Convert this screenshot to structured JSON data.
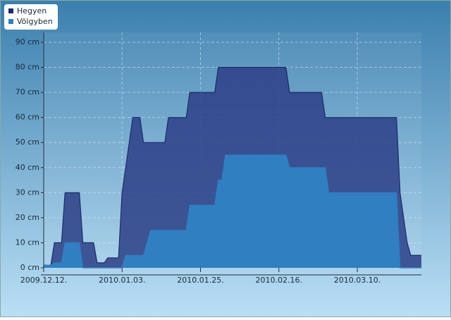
{
  "chart_data": {
    "type": "area",
    "x": [
      "2009-12-12",
      "2009-12-14",
      "2009-12-15",
      "2009-12-17",
      "2009-12-18",
      "2009-12-22",
      "2009-12-23",
      "2009-12-26",
      "2009-12-27",
      "2009-12-29",
      "2009-12-30",
      "2010-01-02",
      "2010-01-03",
      "2010-01-04",
      "2010-01-05",
      "2010-01-06",
      "2010-01-08",
      "2010-01-09",
      "2010-01-11",
      "2010-01-15",
      "2010-01-16",
      "2010-01-21",
      "2010-01-22",
      "2010-01-29",
      "2010-01-30",
      "2010-01-31",
      "2010-02-01",
      "2010-02-18",
      "2010-02-19",
      "2010-02-28",
      "2010-03-01",
      "2010-03-02",
      "2010-03-21",
      "2010-03-22",
      "2010-03-24",
      "2010-03-25",
      "2010-03-28"
    ],
    "series": [
      {
        "name": "Hegyen",
        "color": "#2b3f86",
        "values": [
          1,
          1,
          10,
          10,
          30,
          30,
          10,
          10,
          2,
          2,
          4,
          4,
          30,
          40,
          50,
          60,
          60,
          50,
          50,
          50,
          60,
          60,
          70,
          70,
          80,
          80,
          80,
          80,
          70,
          70,
          60,
          60,
          60,
          30,
          10,
          5,
          5
        ]
      },
      {
        "name": "Völgyben",
        "color": "#2f7fc1",
        "values": [
          1,
          1,
          2,
          2,
          10,
          10,
          0,
          0,
          0,
          0,
          0,
          0,
          0,
          5,
          5,
          5,
          5,
          5,
          15,
          15,
          15,
          15,
          25,
          25,
          35,
          35,
          45,
          45,
          40,
          40,
          40,
          30,
          30,
          0,
          0,
          0,
          0
        ]
      }
    ],
    "xlim": [
      "2009-12-12",
      "2010-03-28"
    ],
    "xticks": [
      {
        "value": "2009-12-12",
        "label": "2009.12.12."
      },
      {
        "value": "2010-01-03",
        "label": "2010.01.03."
      },
      {
        "value": "2010-01-25",
        "label": "2010.01.25."
      },
      {
        "value": "2010-02-16",
        "label": "2010.02.16."
      },
      {
        "value": "2010-03-10",
        "label": "2010.03.10."
      }
    ],
    "ylim": [
      0,
      90
    ],
    "yticks": [
      {
        "value": 0,
        "label": "0 cm"
      },
      {
        "value": 10,
        "label": "10 cm"
      },
      {
        "value": 20,
        "label": "20 cm"
      },
      {
        "value": 30,
        "label": "30 cm"
      },
      {
        "value": 40,
        "label": "40 cm"
      },
      {
        "value": 50,
        "label": "50 cm"
      },
      {
        "value": 60,
        "label": "60 cm"
      },
      {
        "value": 70,
        "label": "70 cm"
      },
      {
        "value": 80,
        "label": "80 cm"
      },
      {
        "value": 90,
        "label": "90 cm"
      }
    ],
    "grid": true,
    "legend": "top-left"
  }
}
